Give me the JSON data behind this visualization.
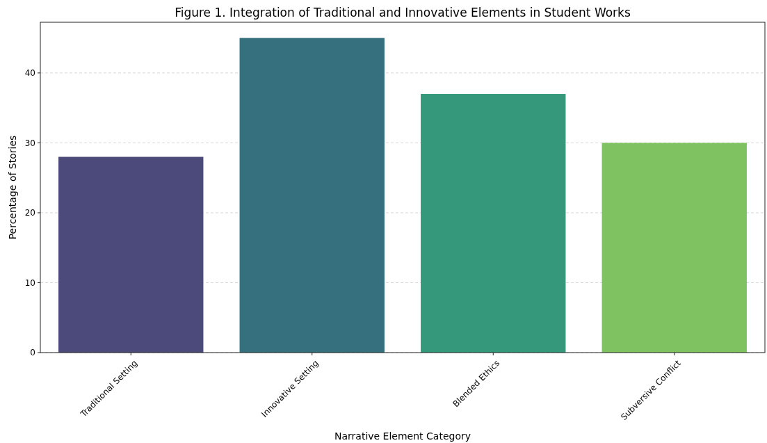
{
  "chart_data": {
    "type": "bar",
    "title": "Figure 1. Integration of Traditional and Innovative Elements in Student Works",
    "xlabel": "Narrative Element Category",
    "ylabel": "Percentage of Stories",
    "categories": [
      "Traditional Setting",
      "Innovative Setting",
      "Blended Ethics",
      "Subversive Conflict"
    ],
    "values": [
      28,
      45,
      37,
      30
    ],
    "colors": [
      "#4b4a7b",
      "#36707e",
      "#35987b",
      "#7fc262"
    ],
    "ylim": [
      0,
      47.25
    ],
    "yticks": [
      0,
      10,
      20,
      30,
      40
    ],
    "grid": "y"
  }
}
